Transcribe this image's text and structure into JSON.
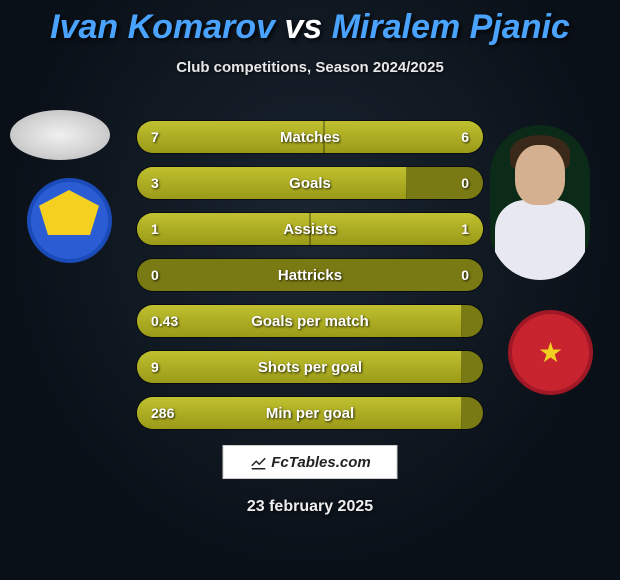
{
  "title": {
    "player1": "Ivan Komarov",
    "vs": "vs",
    "player2": "Miralem Pjanic",
    "player1_color": "#4aa3ff",
    "vs_color": "#ffffff",
    "player2_color": "#4aa3ff"
  },
  "subtitle": "Club competitions, Season 2024/2025",
  "watermark": "FcTables.com",
  "date": "23 february 2025",
  "bar_colors": {
    "fill": "#b0b020",
    "track": "#7a7a14",
    "text": "#ffffff"
  },
  "stats": [
    {
      "label": "Matches",
      "left_val": "7",
      "right_val": "6",
      "left_pct": 54,
      "right_pct": 46
    },
    {
      "label": "Goals",
      "left_val": "3",
      "right_val": "0",
      "left_pct": 78,
      "right_pct": 0
    },
    {
      "label": "Assists",
      "left_val": "1",
      "right_val": "1",
      "left_pct": 50,
      "right_pct": 50
    },
    {
      "label": "Hattricks",
      "left_val": "0",
      "right_val": "0",
      "left_pct": 0,
      "right_pct": 0
    },
    {
      "label": "Goals per match",
      "left_val": "0.43",
      "right_val": "",
      "left_pct": 94,
      "right_pct": 0
    },
    {
      "label": "Shots per goal",
      "left_val": "9",
      "right_val": "",
      "left_pct": 94,
      "right_pct": 0
    },
    {
      "label": "Min per goal",
      "left_val": "286",
      "right_val": "",
      "left_pct": 94,
      "right_pct": 0
    }
  ]
}
